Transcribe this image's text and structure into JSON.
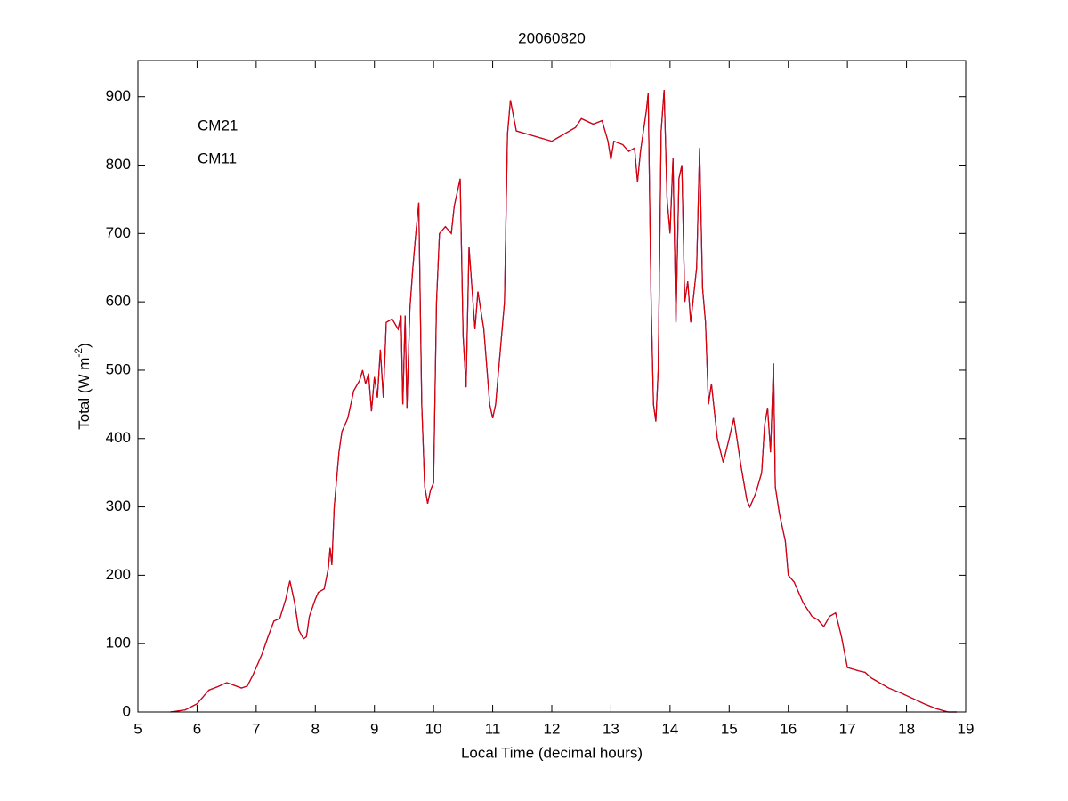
{
  "chart_data": {
    "type": "line",
    "title": "20060820",
    "xlabel": "Local Time (decimal hours)",
    "ylabel": {
      "text": "Total (W m",
      "sup": "-2",
      "end": ")"
    },
    "xlim": [
      5,
      19
    ],
    "xticks": [
      5,
      6,
      7,
      8,
      9,
      10,
      11,
      12,
      13,
      14,
      15,
      16,
      17,
      18,
      19
    ],
    "ylim": [
      0,
      953
    ],
    "yticks": [
      0,
      100,
      200,
      300,
      400,
      500,
      600,
      700,
      800,
      900
    ],
    "legend": "upper left",
    "x": [
      5.55,
      5.8,
      6.0,
      6.1,
      6.2,
      6.35,
      6.5,
      6.6,
      6.75,
      6.85,
      6.95,
      7.1,
      7.2,
      7.3,
      7.4,
      7.5,
      7.57,
      7.65,
      7.72,
      7.8,
      7.85,
      7.9,
      8.0,
      8.05,
      8.15,
      8.22,
      8.25,
      8.28,
      8.32,
      8.4,
      8.45,
      8.55,
      8.65,
      8.75,
      8.8,
      8.85,
      8.9,
      8.95,
      9.0,
      9.05,
      9.1,
      9.15,
      9.2,
      9.3,
      9.4,
      9.45,
      9.48,
      9.52,
      9.55,
      9.6,
      9.65,
      9.7,
      9.75,
      9.8,
      9.85,
      9.9,
      9.95,
      10.0,
      10.05,
      10.1,
      10.2,
      10.3,
      10.35,
      10.45,
      10.5,
      10.55,
      10.6,
      10.7,
      10.75,
      10.85,
      10.95,
      11.0,
      11.05,
      11.12,
      11.2,
      11.25,
      11.3,
      11.4,
      11.6,
      11.8,
      12.0,
      12.2,
      12.4,
      12.5,
      12.7,
      12.85,
      12.95,
      13.0,
      13.05,
      13.2,
      13.3,
      13.4,
      13.45,
      13.5,
      13.6,
      13.63,
      13.68,
      13.72,
      13.76,
      13.8,
      13.85,
      13.9,
      13.95,
      14.0,
      14.05,
      14.1,
      14.15,
      14.2,
      14.25,
      14.3,
      14.35,
      14.45,
      14.5,
      14.55,
      14.6,
      14.65,
      14.7,
      14.8,
      14.9,
      15.0,
      15.08,
      15.2,
      15.3,
      15.35,
      15.45,
      15.55,
      15.6,
      15.65,
      15.7,
      15.75,
      15.78,
      15.85,
      15.95,
      16.0,
      16.1,
      16.25,
      16.4,
      16.5,
      16.6,
      16.7,
      16.8,
      16.9,
      17.0,
      17.2,
      17.3,
      17.4,
      17.5,
      17.7,
      17.9,
      18.1,
      18.3,
      18.5,
      18.7,
      18.85
    ],
    "series": [
      {
        "name": "CM21",
        "color": "#0000c0",
        "values": [
          0,
          3,
          12,
          22,
          32,
          37,
          43,
          40,
          35,
          38,
          55,
          85,
          110,
          133,
          137,
          165,
          192,
          160,
          120,
          107,
          110,
          140,
          165,
          175,
          180,
          210,
          240,
          215,
          300,
          380,
          410,
          430,
          470,
          485,
          500,
          480,
          495,
          440,
          490,
          460,
          530,
          460,
          570,
          575,
          560,
          580,
          450,
          580,
          445,
          590,
          650,
          700,
          745,
          450,
          330,
          305,
          325,
          335,
          600,
          700,
          710,
          700,
          740,
          780,
          550,
          475,
          680,
          560,
          615,
          560,
          450,
          430,
          450,
          520,
          600,
          845,
          895,
          850,
          845,
          840,
          835,
          845,
          855,
          868,
          860,
          865,
          835,
          808,
          835,
          830,
          820,
          825,
          775,
          820,
          880,
          905,
          600,
          450,
          425,
          500,
          850,
          910,
          750,
          700,
          810,
          570,
          780,
          800,
          600,
          630,
          570,
          650,
          825,
          620,
          570,
          450,
          480,
          400,
          365,
          400,
          430,
          360,
          310,
          300,
          320,
          350,
          420,
          445,
          380,
          510,
          330,
          290,
          250,
          200,
          190,
          160,
          140,
          135,
          125,
          140,
          145,
          110,
          65,
          60,
          58,
          50,
          45,
          35,
          28,
          20,
          12,
          5,
          0,
          0
        ]
      },
      {
        "name": "CM11",
        "color": "#e00000",
        "values": [
          0,
          3,
          12,
          22,
          32,
          37,
          43,
          40,
          35,
          38,
          55,
          85,
          110,
          133,
          137,
          165,
          192,
          160,
          120,
          107,
          110,
          140,
          165,
          175,
          180,
          210,
          240,
          215,
          300,
          380,
          410,
          430,
          470,
          485,
          500,
          480,
          495,
          440,
          490,
          460,
          530,
          460,
          570,
          575,
          560,
          580,
          450,
          580,
          445,
          590,
          650,
          700,
          745,
          450,
          330,
          305,
          325,
          335,
          600,
          700,
          710,
          700,
          740,
          780,
          550,
          475,
          680,
          560,
          615,
          560,
          450,
          430,
          450,
          520,
          600,
          845,
          895,
          850,
          845,
          840,
          835,
          845,
          855,
          868,
          860,
          865,
          835,
          808,
          835,
          830,
          820,
          825,
          775,
          820,
          880,
          905,
          600,
          450,
          425,
          500,
          850,
          910,
          750,
          700,
          810,
          570,
          780,
          800,
          600,
          630,
          570,
          650,
          825,
          620,
          570,
          450,
          480,
          400,
          365,
          400,
          430,
          360,
          310,
          300,
          320,
          350,
          420,
          445,
          380,
          510,
          330,
          290,
          250,
          200,
          190,
          160,
          140,
          135,
          125,
          140,
          145,
          110,
          65,
          60,
          58,
          50,
          45,
          35,
          28,
          20,
          12,
          5,
          0,
          0
        ]
      }
    ]
  }
}
